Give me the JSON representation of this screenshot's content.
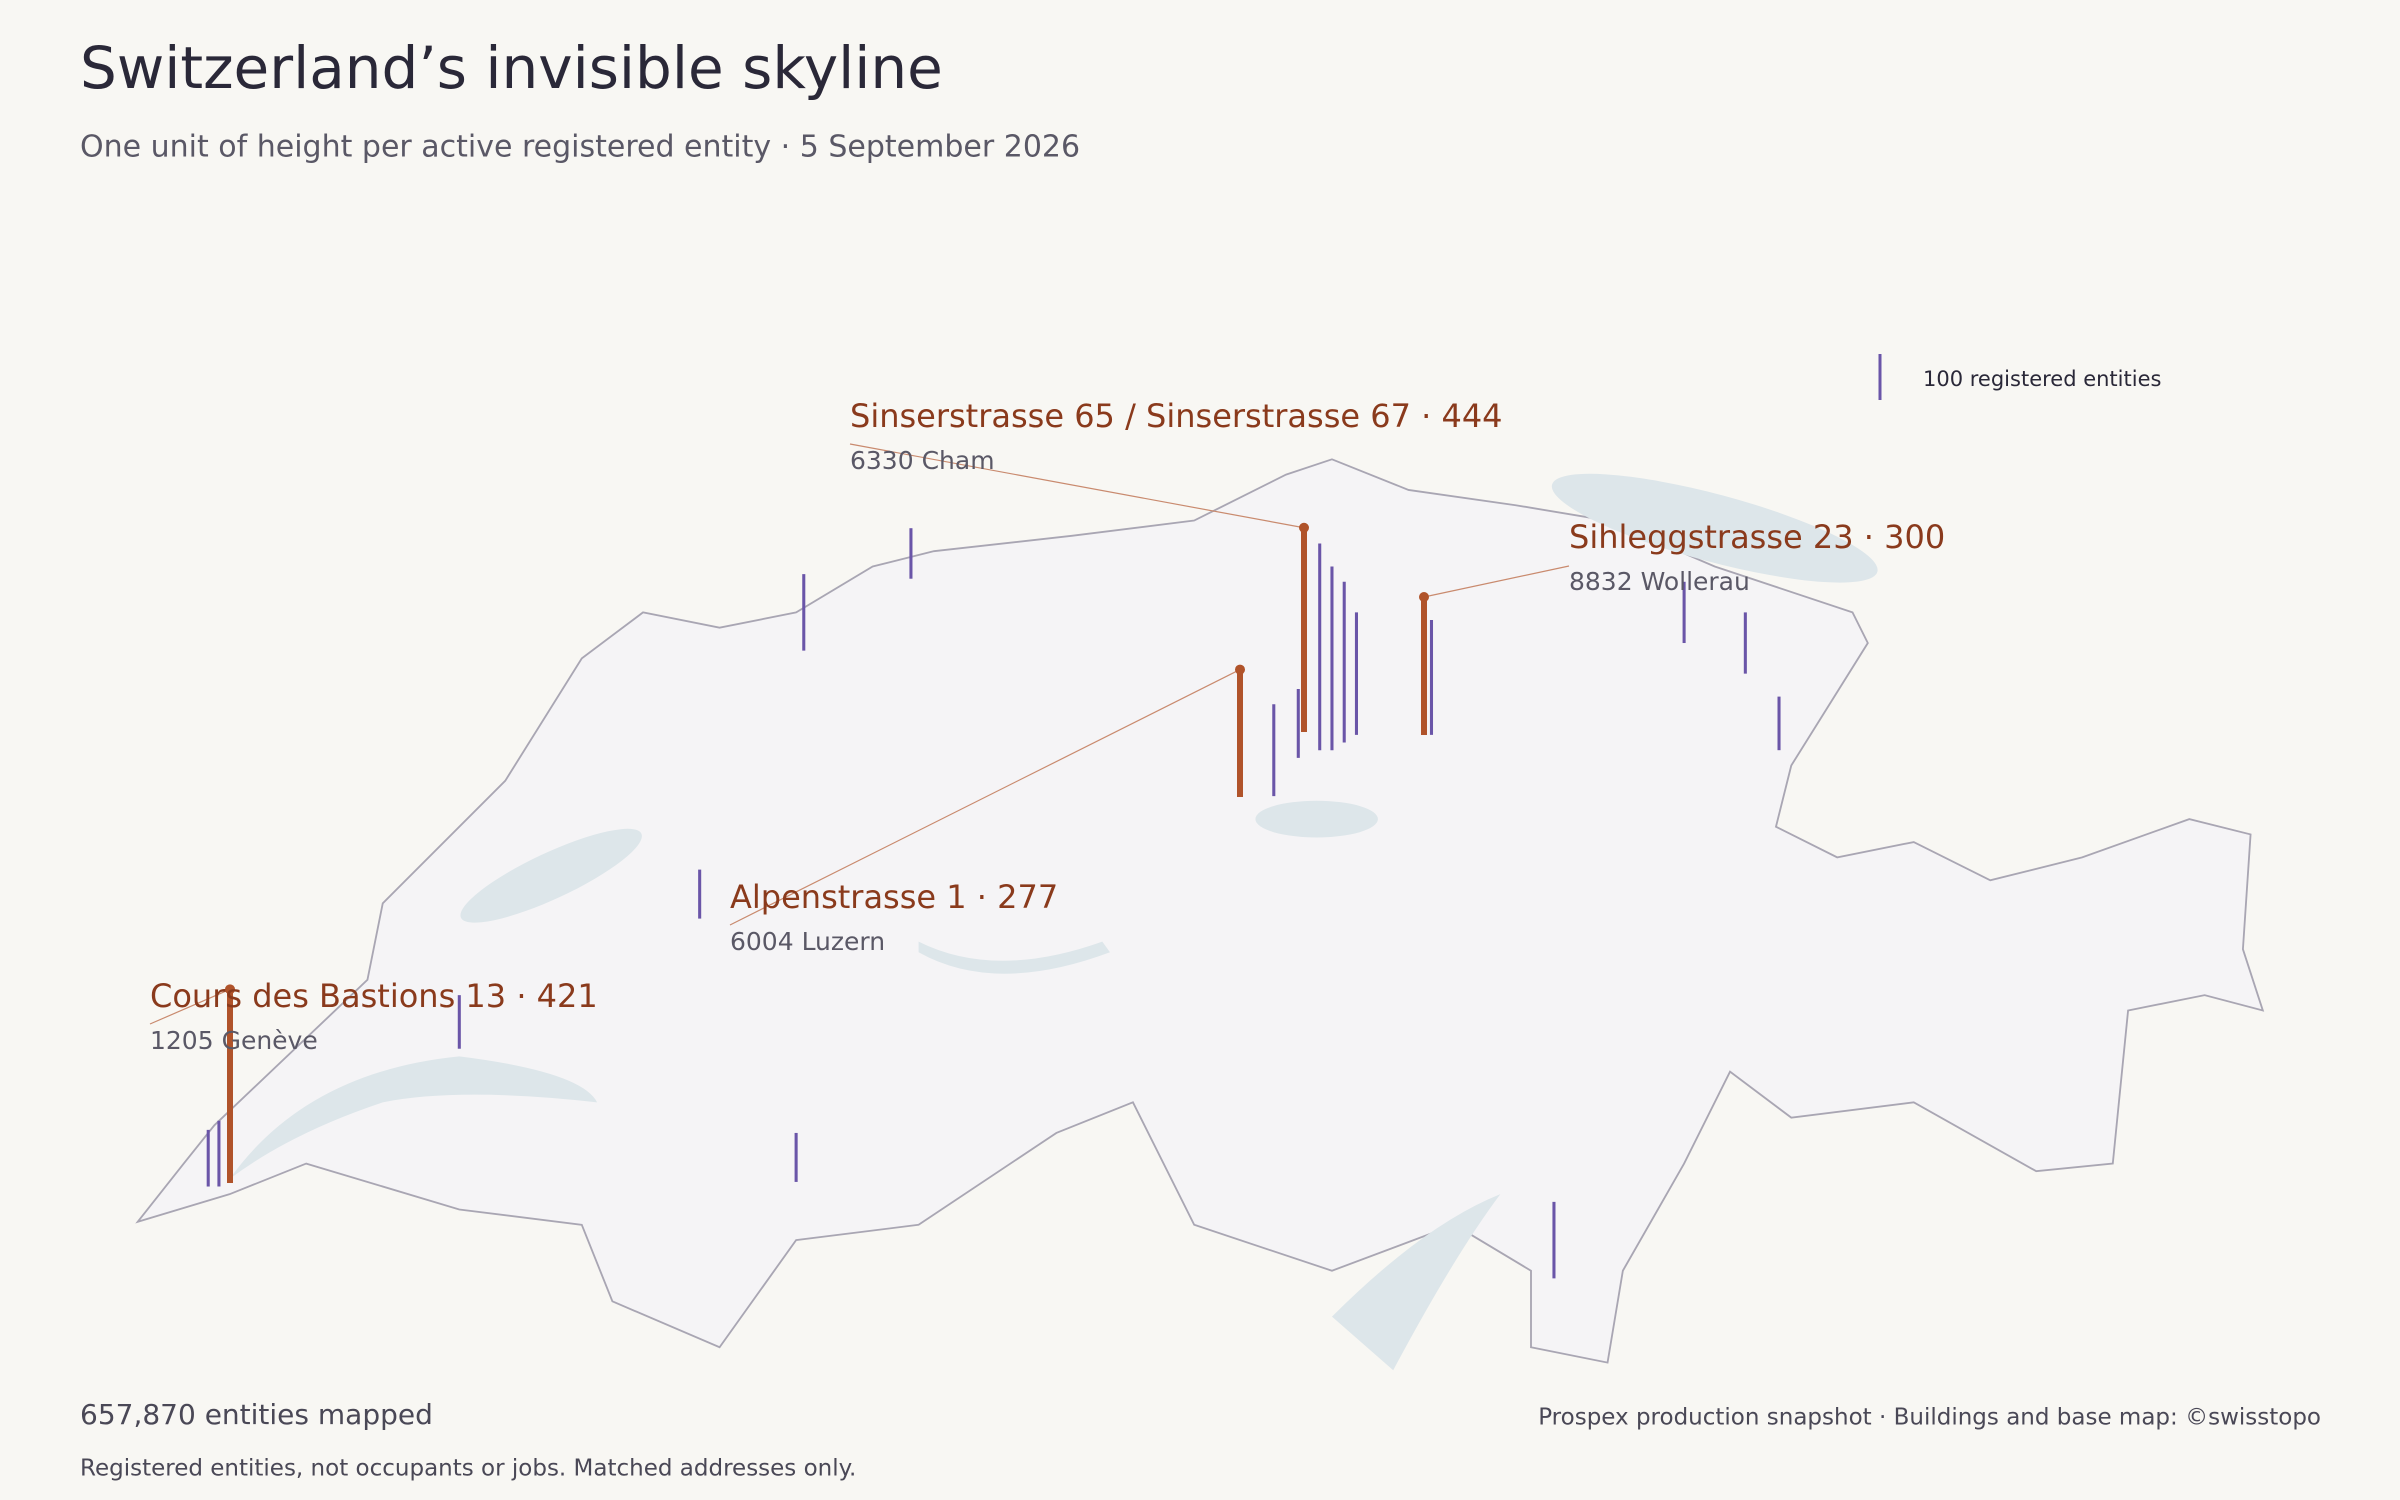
{
  "header": {
    "title": "Switzerland’s invisible skyline",
    "subtitle": "One unit of height per active registered entity · 5 September 2026"
  },
  "legend": {
    "value": 100,
    "label": "100 registered entities"
  },
  "annotations": [
    {
      "label": "Sinserstrasse 65 / Sinserstrasse 67 · 444",
      "value": 444,
      "place": "6330 Cham"
    },
    {
      "label": "Sihleggstrasse 23 · 300",
      "value": 300,
      "place": "8832 Wollerau"
    },
    {
      "label": "Alpenstrasse 1 · 277",
      "value": 277,
      "place": "6004 Luzern"
    },
    {
      "label": "Cours des Bastions 13 · 421",
      "value": 421,
      "place": "1205 Genève"
    }
  ],
  "footer": {
    "count": "657,870 entities mapped",
    "note": "Registered entities, not occupants or jobs. Matched addresses only.",
    "credit": "Prospex production snapshot · Buildings and base map: ©swisstopo"
  }
}
